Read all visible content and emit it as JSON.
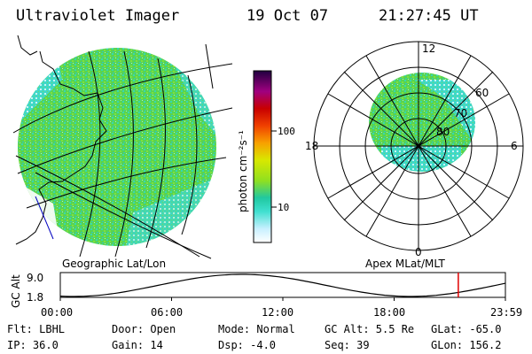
{
  "header": {
    "title": "Ultraviolet Imager",
    "date": "19 Oct 07",
    "time": "21:27:45 UT"
  },
  "colorbar": {
    "unit_label": "photon cm⁻²s⁻¹",
    "ticks": [
      {
        "value": 10,
        "label": "10"
      },
      {
        "value": 100,
        "label": "100"
      }
    ],
    "stops": [
      "#ffffff",
      "#c8f0ff",
      "#40e0d0",
      "#20c8a0",
      "#90e020",
      "#d8e800",
      "#f8a000",
      "#f04000",
      "#c80000",
      "#a00080",
      "#200040"
    ]
  },
  "panels": {
    "geo_caption": "Geographic Lat/Lon",
    "polar_caption": "Apex MLat/MLT",
    "polar_hour_labels": {
      "top": "12",
      "left": "18",
      "right": "6",
      "bottom": "0"
    },
    "polar_lat_labels": [
      "60",
      "70",
      "80"
    ]
  },
  "altitude_plot": {
    "ylabel": "GC Alt",
    "y_ticks": [
      "9.0",
      "1.8"
    ],
    "x_ticks": [
      "00:00",
      "06:00",
      "12:00",
      "18:00",
      "23:59"
    ],
    "current_time_marker_hour": 21.46,
    "marker_color": "#e00000"
  },
  "info": {
    "flt": "Flt: LBHL",
    "door": "Door: Open",
    "mode": "Mode: Normal",
    "gc_alt": "GC Alt: 5.5 Re",
    "glat": "GLat: -65.0",
    "ip": "IP: 36.0",
    "gain": "Gain: 14",
    "dsp": "Dsp:   -4.0",
    "seq": "Seq: 39",
    "glon": "GLon: 156.2"
  },
  "colors": {
    "aurora_green": "#60d840",
    "aurora_teal": "#30d8b8",
    "aurora_pale": "#c8f4f4"
  }
}
